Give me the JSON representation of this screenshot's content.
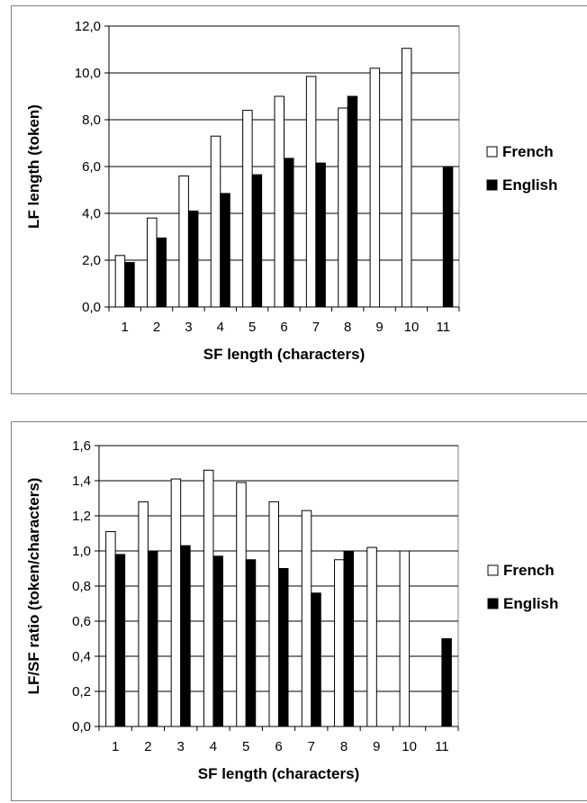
{
  "colors": {
    "french": "#ffffff",
    "english": "#000000",
    "grid": "#000000",
    "plot_border": "#808080"
  },
  "chart_data": [
    {
      "type": "bar",
      "title": "",
      "xlabel": "SF length (characters)",
      "ylabel": "LF length (token)",
      "categories": [
        "1",
        "2",
        "3",
        "4",
        "5",
        "6",
        "7",
        "8",
        "9",
        "10",
        "11"
      ],
      "ylim": [
        0,
        12
      ],
      "yticks": [
        0,
        2,
        4,
        6,
        8,
        10,
        12
      ],
      "ytick_labels": [
        "0,0",
        "2,0",
        "4,0",
        "6,0",
        "8,0",
        "10,0",
        "12,0"
      ],
      "grid": true,
      "legend_position": "right",
      "series": [
        {
          "name": "French",
          "values": [
            2.2,
            3.8,
            5.6,
            7.3,
            8.4,
            9.0,
            9.85,
            8.5,
            10.2,
            11.05,
            null
          ]
        },
        {
          "name": "English",
          "values": [
            1.9,
            2.95,
            4.1,
            4.85,
            5.65,
            6.35,
            6.15,
            9.0,
            null,
            null,
            6.0
          ]
        }
      ]
    },
    {
      "type": "bar",
      "title": "",
      "xlabel": "SF length (characters)",
      "ylabel": "LF/SF ratio (token/characters)",
      "categories": [
        "1",
        "2",
        "3",
        "4",
        "5",
        "6",
        "7",
        "8",
        "9",
        "10",
        "11"
      ],
      "ylim": [
        0,
        1.6
      ],
      "yticks": [
        0,
        0.2,
        0.4,
        0.6,
        0.8,
        1.0,
        1.2,
        1.4,
        1.6
      ],
      "ytick_labels": [
        "0,0",
        "0,2",
        "0,4",
        "0,6",
        "0,8",
        "1,0",
        "1,2",
        "1,4",
        "1,6"
      ],
      "grid": true,
      "legend_position": "right",
      "series": [
        {
          "name": "French",
          "values": [
            1.11,
            1.28,
            1.41,
            1.46,
            1.39,
            1.28,
            1.23,
            0.95,
            1.02,
            1.0,
            null
          ]
        },
        {
          "name": "English",
          "values": [
            0.98,
            1.0,
            1.03,
            0.97,
            0.95,
            0.9,
            0.76,
            1.0,
            null,
            null,
            0.5
          ]
        }
      ]
    }
  ]
}
